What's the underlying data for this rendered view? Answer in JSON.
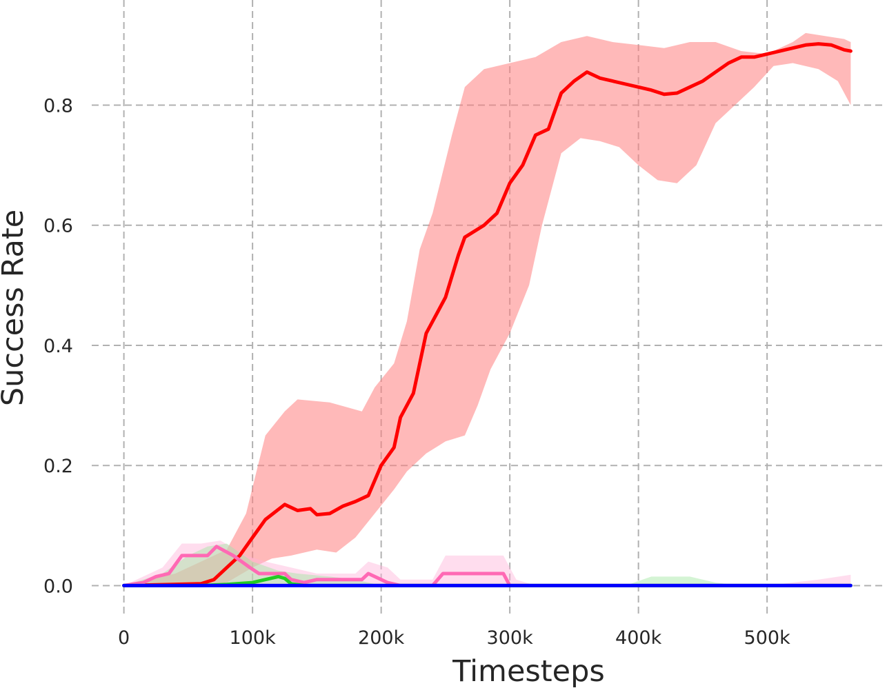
{
  "chart_data": {
    "type": "line",
    "title": "",
    "xlabel": "Timesteps",
    "ylabel": "Success Rate",
    "xlim": [
      -25000,
      590000
    ],
    "ylim": [
      -0.05,
      0.975
    ],
    "xticks": [
      0,
      100000,
      200000,
      300000,
      400000,
      500000
    ],
    "xtick_labels": [
      "0",
      "100k",
      "200k",
      "300k",
      "400k",
      "500k"
    ],
    "yticks": [
      0.0,
      0.2,
      0.4,
      0.6,
      0.8
    ],
    "ytick_labels": [
      "0.0",
      "0.2",
      "0.4",
      "0.6",
      "0.8"
    ],
    "grid": true,
    "legend": "none",
    "series": [
      {
        "color": "#ff0000",
        "band_color": "#ff8080",
        "points": [
          [
            0,
            0
          ],
          [
            60000,
            0.003
          ],
          [
            70000,
            0.01
          ],
          [
            80000,
            0.03
          ],
          [
            90000,
            0.05
          ],
          [
            100000,
            0.08
          ],
          [
            110000,
            0.11
          ],
          [
            125000,
            0.135
          ],
          [
            135000,
            0.125
          ],
          [
            145000,
            0.128
          ],
          [
            150000,
            0.118
          ],
          [
            160000,
            0.12
          ],
          [
            170000,
            0.132
          ],
          [
            180000,
            0.14
          ],
          [
            190000,
            0.15
          ],
          [
            200000,
            0.2
          ],
          [
            210000,
            0.23
          ],
          [
            215000,
            0.28
          ],
          [
            225000,
            0.32
          ],
          [
            235000,
            0.42
          ],
          [
            245000,
            0.46
          ],
          [
            250000,
            0.48
          ],
          [
            260000,
            0.55
          ],
          [
            265000,
            0.58
          ],
          [
            280000,
            0.6
          ],
          [
            290000,
            0.62
          ],
          [
            300000,
            0.67
          ],
          [
            310000,
            0.7
          ],
          [
            320000,
            0.75
          ],
          [
            330000,
            0.76
          ],
          [
            340000,
            0.82
          ],
          [
            350000,
            0.84
          ],
          [
            360000,
            0.855
          ],
          [
            370000,
            0.845
          ],
          [
            380000,
            0.84
          ],
          [
            390000,
            0.835
          ],
          [
            400000,
            0.83
          ],
          [
            410000,
            0.825
          ],
          [
            420000,
            0.818
          ],
          [
            430000,
            0.82
          ],
          [
            440000,
            0.83
          ],
          [
            450000,
            0.84
          ],
          [
            460000,
            0.855
          ],
          [
            470000,
            0.87
          ],
          [
            480000,
            0.88
          ],
          [
            490000,
            0.88
          ],
          [
            500000,
            0.885
          ],
          [
            510000,
            0.89
          ],
          [
            520000,
            0.895
          ],
          [
            530000,
            0.9
          ],
          [
            540000,
            0.902
          ],
          [
            550000,
            0.9
          ],
          [
            560000,
            0.892
          ],
          [
            565000,
            0.89
          ]
        ],
        "band_upper": [
          [
            0,
            0
          ],
          [
            40000,
            0.02
          ],
          [
            60000,
            0.04
          ],
          [
            80000,
            0.06
          ],
          [
            95000,
            0.12
          ],
          [
            110000,
            0.25
          ],
          [
            125000,
            0.29
          ],
          [
            135000,
            0.31
          ],
          [
            160000,
            0.305
          ],
          [
            185000,
            0.29
          ],
          [
            195000,
            0.33
          ],
          [
            210000,
            0.37
          ],
          [
            220000,
            0.44
          ],
          [
            230000,
            0.56
          ],
          [
            240000,
            0.62
          ],
          [
            255000,
            0.75
          ],
          [
            265000,
            0.83
          ],
          [
            280000,
            0.86
          ],
          [
            300000,
            0.87
          ],
          [
            320000,
            0.88
          ],
          [
            340000,
            0.905
          ],
          [
            360000,
            0.915
          ],
          [
            380000,
            0.905
          ],
          [
            400000,
            0.9
          ],
          [
            420000,
            0.895
          ],
          [
            440000,
            0.905
          ],
          [
            460000,
            0.905
          ],
          [
            480000,
            0.89
          ],
          [
            500000,
            0.885
          ],
          [
            520000,
            0.905
          ],
          [
            530000,
            0.92
          ],
          [
            545000,
            0.915
          ],
          [
            560000,
            0.91
          ],
          [
            565000,
            0.905
          ]
        ],
        "band_lower": [
          [
            0,
            0
          ],
          [
            60000,
            0
          ],
          [
            80000,
            0.005
          ],
          [
            100000,
            0.03
          ],
          [
            115000,
            0.045
          ],
          [
            130000,
            0.05
          ],
          [
            150000,
            0.06
          ],
          [
            165000,
            0.055
          ],
          [
            180000,
            0.08
          ],
          [
            195000,
            0.12
          ],
          [
            210000,
            0.16
          ],
          [
            220000,
            0.19
          ],
          [
            235000,
            0.22
          ],
          [
            250000,
            0.24
          ],
          [
            265000,
            0.25
          ],
          [
            275000,
            0.3
          ],
          [
            285000,
            0.36
          ],
          [
            300000,
            0.42
          ],
          [
            315000,
            0.5
          ],
          [
            325000,
            0.6
          ],
          [
            340000,
            0.72
          ],
          [
            355000,
            0.745
          ],
          [
            370000,
            0.74
          ],
          [
            385000,
            0.73
          ],
          [
            400000,
            0.7
          ],
          [
            415000,
            0.675
          ],
          [
            430000,
            0.67
          ],
          [
            445000,
            0.7
          ],
          [
            460000,
            0.77
          ],
          [
            475000,
            0.8
          ],
          [
            490000,
            0.83
          ],
          [
            505000,
            0.865
          ],
          [
            520000,
            0.87
          ],
          [
            540000,
            0.86
          ],
          [
            555000,
            0.84
          ],
          [
            565000,
            0.8
          ]
        ]
      },
      {
        "color": "#ff69b4",
        "band_color": "#ffb3d9",
        "points": [
          [
            0,
            0
          ],
          [
            15000,
            0.005
          ],
          [
            25000,
            0.015
          ],
          [
            35000,
            0.02
          ],
          [
            45000,
            0.05
          ],
          [
            65000,
            0.05
          ],
          [
            72000,
            0.065
          ],
          [
            85000,
            0.05
          ],
          [
            98000,
            0.03
          ],
          [
            105000,
            0.02
          ],
          [
            125000,
            0.02
          ],
          [
            130000,
            0.01
          ],
          [
            140000,
            0.005
          ],
          [
            150000,
            0.01
          ],
          [
            170000,
            0.01
          ],
          [
            185000,
            0.01
          ],
          [
            190000,
            0.02
          ],
          [
            200000,
            0.01
          ],
          [
            205000,
            0.005
          ],
          [
            215000,
            0
          ],
          [
            240000,
            0
          ],
          [
            248000,
            0.02
          ],
          [
            295000,
            0.02
          ],
          [
            300000,
            0
          ],
          [
            565000,
            0
          ]
        ],
        "band_upper": [
          [
            0,
            0
          ],
          [
            15000,
            0.015
          ],
          [
            30000,
            0.03
          ],
          [
            45000,
            0.07
          ],
          [
            60000,
            0.07
          ],
          [
            75000,
            0.075
          ],
          [
            95000,
            0.05
          ],
          [
            110000,
            0.04
          ],
          [
            130000,
            0.03
          ],
          [
            150000,
            0.02
          ],
          [
            180000,
            0.02
          ],
          [
            190000,
            0.04
          ],
          [
            205000,
            0.03
          ],
          [
            215000,
            0.01
          ],
          [
            240000,
            0.01
          ],
          [
            250000,
            0.05
          ],
          [
            295000,
            0.05
          ],
          [
            305000,
            0.01
          ],
          [
            320000,
            0
          ],
          [
            500000,
            0
          ],
          [
            540000,
            0.01
          ],
          [
            565000,
            0.018
          ]
        ],
        "band_lower": [
          [
            0,
            0
          ],
          [
            565000,
            0
          ]
        ]
      },
      {
        "color": "#22cc22",
        "band_color": "#a0e6a0",
        "points": [
          [
            0,
            0
          ],
          [
            60000,
            0
          ],
          [
            80000,
            0.002
          ],
          [
            100000,
            0.005
          ],
          [
            110000,
            0.01
          ],
          [
            120000,
            0.015
          ],
          [
            125000,
            0.012
          ],
          [
            130000,
            0.003
          ],
          [
            140000,
            0
          ],
          [
            565000,
            0
          ]
        ],
        "band_upper": [
          [
            0,
            0
          ],
          [
            30000,
            0.02
          ],
          [
            50000,
            0.05
          ],
          [
            65000,
            0.065
          ],
          [
            80000,
            0.07
          ],
          [
            100000,
            0.04
          ],
          [
            120000,
            0.025
          ],
          [
            135000,
            0.02
          ],
          [
            160000,
            0.015
          ],
          [
            180000,
            0.01
          ],
          [
            200000,
            0
          ],
          [
            390000,
            0
          ],
          [
            410000,
            0.015
          ],
          [
            440000,
            0.015
          ],
          [
            460000,
            0.005
          ],
          [
            480000,
            0
          ],
          [
            565000,
            0
          ]
        ],
        "band_lower": [
          [
            0,
            0
          ],
          [
            565000,
            0
          ]
        ]
      },
      {
        "color": "#0000ff",
        "points": [
          [
            0,
            0
          ],
          [
            565000,
            0
          ]
        ]
      }
    ]
  }
}
